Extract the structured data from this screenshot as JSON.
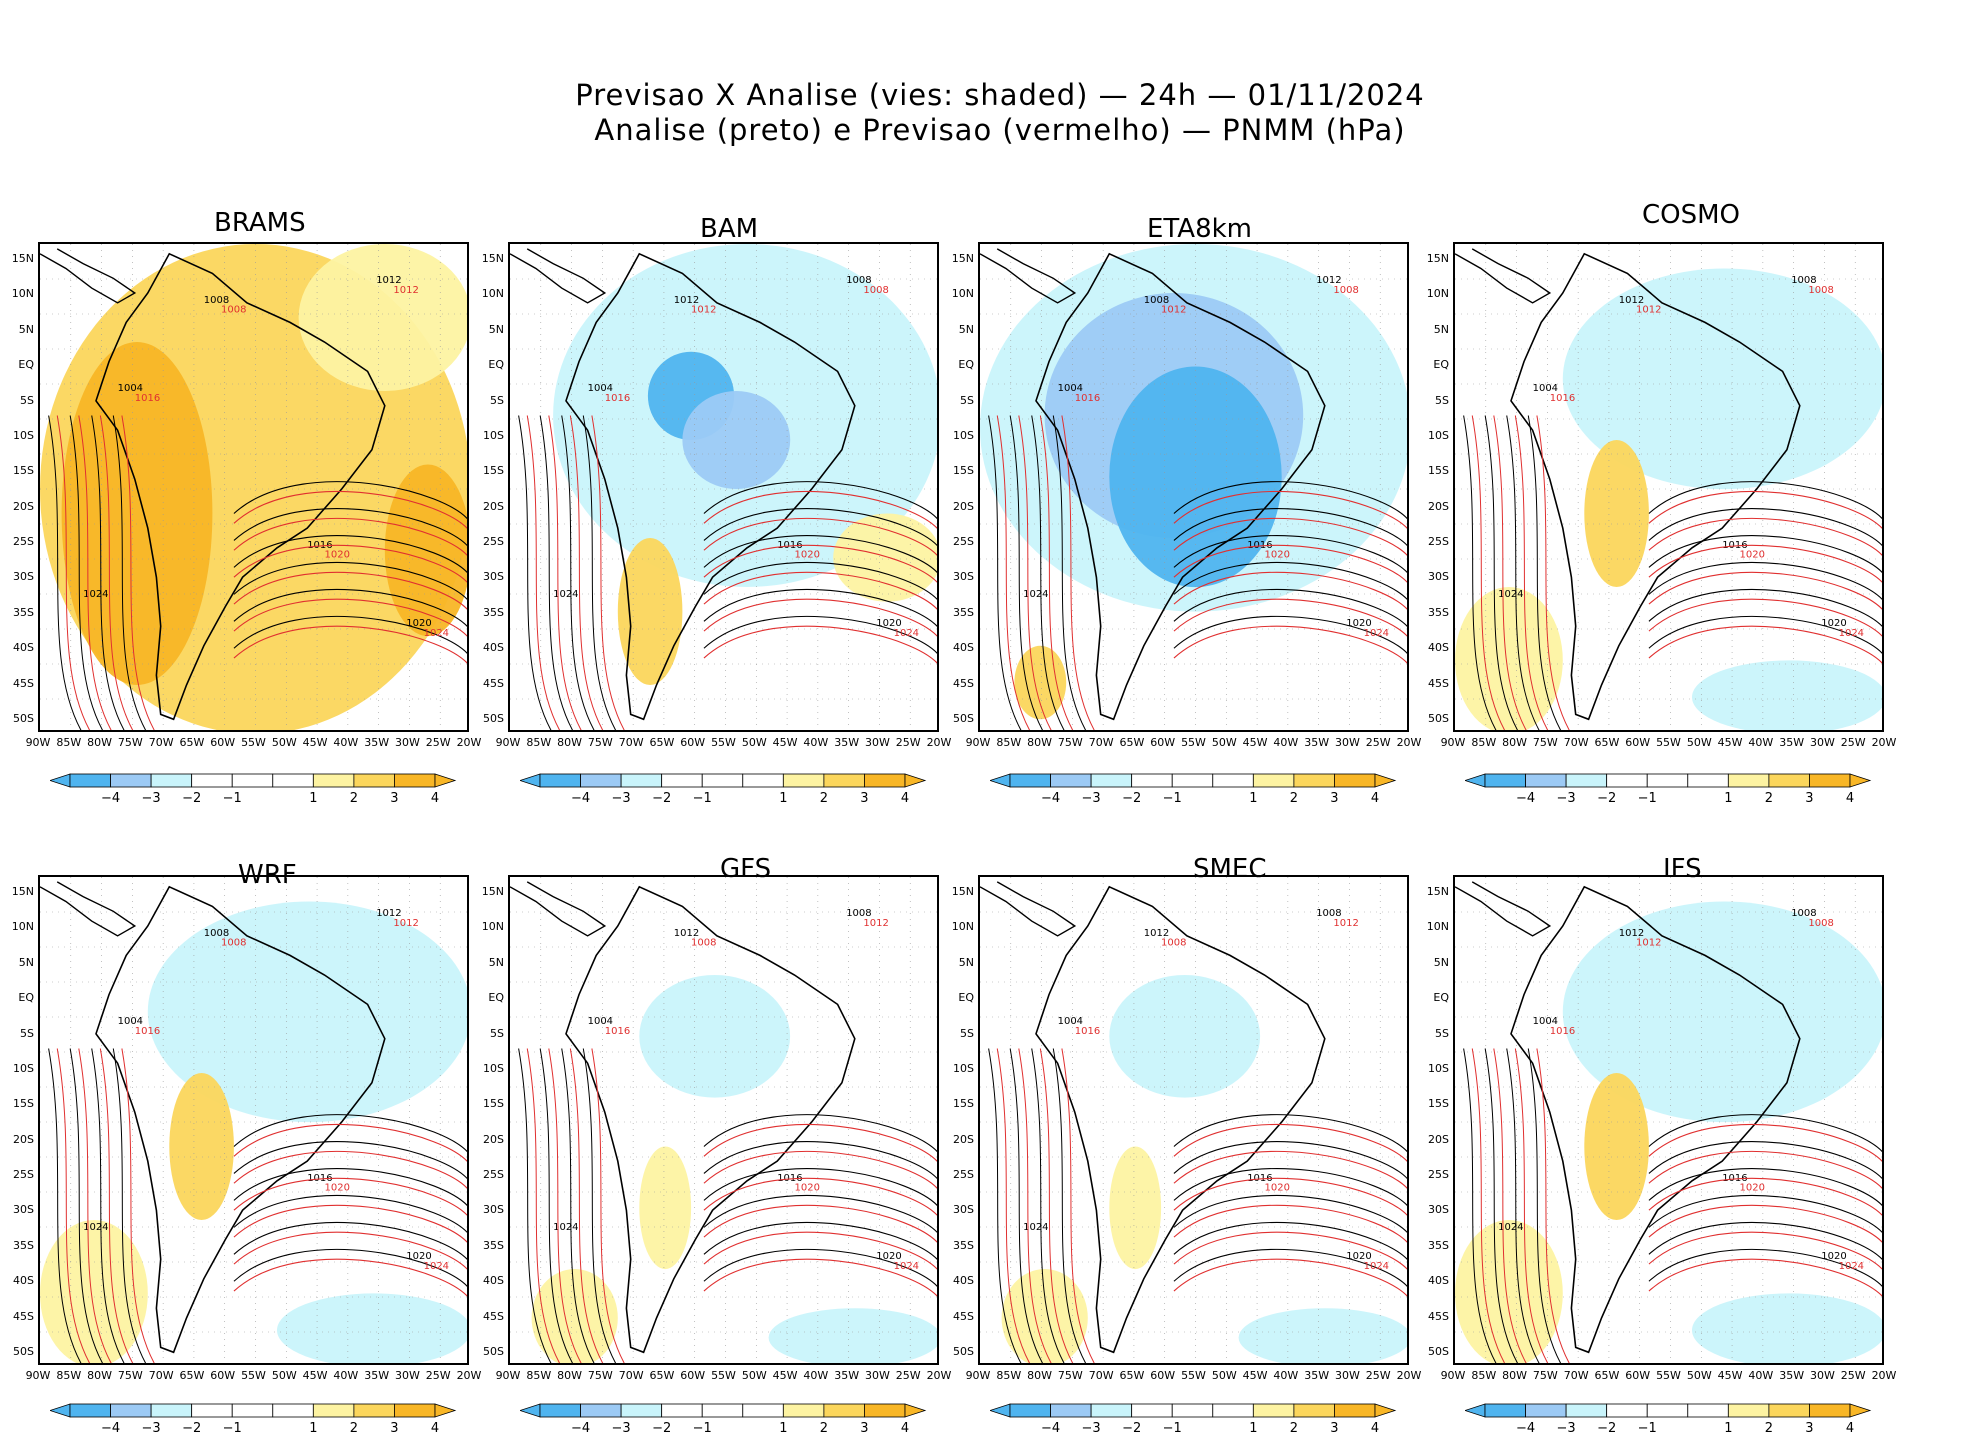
{
  "header": {
    "line1": "Previsao X Analise (vies: shaded) — 24h — 01/11/2024",
    "line2": "Analise (preto) e Previsao (vermelho) — PNMM (hPa)"
  },
  "colors": {
    "neg4": "#4fb4ef",
    "neg3": "#9ccaf5",
    "neg2": "#c9f4fb",
    "neutral": "#ffffff",
    "pos2": "#fdf3a2",
    "pos3": "#fbd65c",
    "pos4": "#f8b626",
    "analysis_line": "#000000",
    "forecast_line": "#e03030"
  },
  "lat_labels": [
    "15N",
    "10N",
    "5N",
    "EQ",
    "5S",
    "10S",
    "15S",
    "20S",
    "25S",
    "30S",
    "35S",
    "40S",
    "45S",
    "50S"
  ],
  "lon_labels": [
    "90W",
    "85W",
    "80W",
    "75W",
    "70W",
    "65W",
    "60W",
    "55W",
    "50W",
    "45W",
    "40W",
    "35W",
    "30W",
    "25W",
    "20W"
  ],
  "colorbar_labels": [
    "−4",
    "−3",
    "−2",
    "−1",
    "1",
    "2",
    "3",
    "4"
  ],
  "panels": [
    {
      "name": "BRAMS",
      "bias": "warm",
      "labels_black": [
        "1012",
        "1008",
        "1004",
        "1016",
        "1020",
        "1024"
      ],
      "labels_red": [
        "1012",
        "1008",
        "1016",
        "1020",
        "1024"
      ]
    },
    {
      "name": "BAM",
      "bias": "cool",
      "labels_black": [
        "1008",
        "1012",
        "1004",
        "1016",
        "1020",
        "1024"
      ],
      "labels_red": [
        "1008",
        "1012",
        "1016",
        "1020",
        "1024"
      ]
    },
    {
      "name": "ETA8km",
      "bias": "verycool",
      "labels_black": [
        "1012",
        "1008",
        "1004",
        "1016",
        "1020",
        "1024"
      ],
      "labels_red": [
        "1008",
        "1012",
        "1016",
        "1020",
        "1024"
      ]
    },
    {
      "name": "COSMO",
      "bias": "mixed",
      "labels_black": [
        "1008",
        "1012",
        "1004",
        "1016",
        "1020",
        "1024"
      ],
      "labels_red": [
        "1008",
        "1012",
        "1016",
        "1020",
        "1024"
      ]
    },
    {
      "name": "WRF",
      "bias": "mixed",
      "labels_black": [
        "1012",
        "1008",
        "1004",
        "1016",
        "1020",
        "1024"
      ],
      "labels_red": [
        "1012",
        "1008",
        "1016",
        "1020",
        "1024"
      ]
    },
    {
      "name": "GFS",
      "bias": "light",
      "labels_black": [
        "1008",
        "1012",
        "1004",
        "1016",
        "1020",
        "1024"
      ],
      "labels_red": [
        "1012",
        "1008",
        "1016",
        "1020",
        "1024"
      ]
    },
    {
      "name": "SMEC",
      "bias": "light",
      "labels_black": [
        "1008",
        "1012",
        "1004",
        "1016",
        "1020",
        "1024"
      ],
      "labels_red": [
        "1012",
        "1008",
        "1016",
        "1020",
        "1024"
      ]
    },
    {
      "name": "IFS",
      "bias": "mixed",
      "labels_black": [
        "1008",
        "1012",
        "1004",
        "1016",
        "1020",
        "1024"
      ],
      "labels_red": [
        "1008",
        "1012",
        "1016",
        "1020",
        "1024"
      ]
    }
  ]
}
